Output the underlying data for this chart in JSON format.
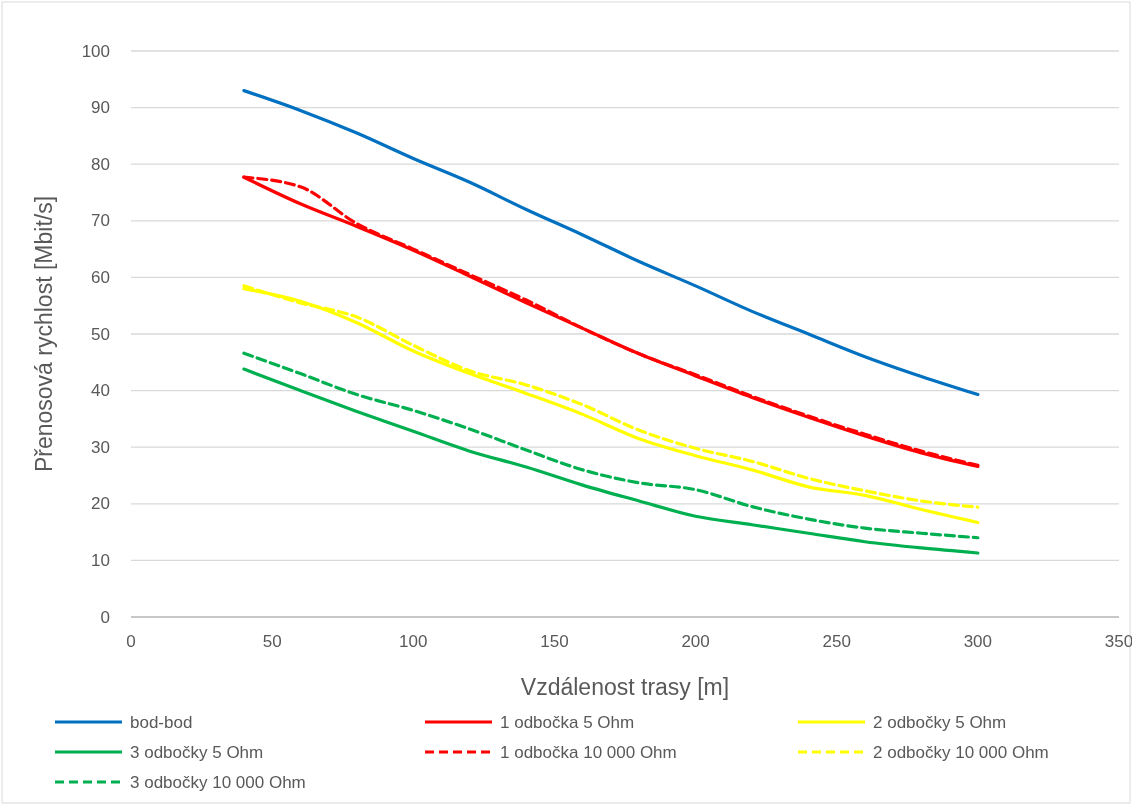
{
  "chart_data": {
    "type": "line",
    "xlabel": "Vzdálenost trasy [m]",
    "ylabel": "Přenosová rychlost [Mbit/s]",
    "x": [
      40,
      60,
      80,
      100,
      120,
      140,
      160,
      180,
      200,
      220,
      240,
      260,
      280,
      300
    ],
    "xlim": [
      0,
      350
    ],
    "xticks": [
      0,
      50,
      100,
      150,
      200,
      250,
      300,
      350
    ],
    "ylim": [
      0,
      100
    ],
    "yticks": [
      0,
      10,
      20,
      30,
      40,
      50,
      60,
      70,
      80,
      90,
      100
    ],
    "grid": "y",
    "legend": "bottom",
    "marker": "none",
    "series": [
      {
        "name": "bod-bod",
        "color": "#0070c0",
        "line_style": "solid",
        "values": [
          93,
          89.5,
          85.5,
          81,
          76.8,
          72,
          67.5,
          62.8,
          58.5,
          54,
          50,
          46,
          42.5,
          39.3
        ]
      },
      {
        "name": "1 odbočka 5 Ohm",
        "color": "#ff0000",
        "line_style": "solid",
        "values": [
          77.7,
          73,
          69,
          64.8,
          60.2,
          55.5,
          51,
          46.5,
          42.6,
          38.8,
          35.3,
          32,
          29,
          26.6
        ]
      },
      {
        "name": "2 odbočky 5 Ohm",
        "color": "#ffff00",
        "line_style": "solid",
        "values": [
          58,
          55.8,
          52,
          47,
          43,
          39.5,
          35.8,
          31.5,
          28.5,
          26,
          23,
          21.5,
          19,
          16.7
        ]
      },
      {
        "name": "3 odbočky 5 Ohm",
        "color": "#00b050",
        "line_style": "solid",
        "values": [
          43.8,
          40,
          36.3,
          32.8,
          29.3,
          26.5,
          23.3,
          20.5,
          17.8,
          16.3,
          14.8,
          13.3,
          12.2,
          11.3
        ]
      },
      {
        "name": "1 odbočka 10 000 Ohm",
        "color": "#ff0000",
        "line_style": "dashed",
        "values": [
          77.7,
          76,
          69.5,
          65,
          60.5,
          56,
          51,
          46.5,
          42.8,
          39,
          35.5,
          32.3,
          29.3,
          26.8
        ]
      },
      {
        "name": "2 odbočky 10 000 Ohm",
        "color": "#ffff00",
        "line_style": "dashed",
        "values": [
          58.5,
          55.5,
          53,
          48,
          43.5,
          41,
          37.5,
          33,
          29.8,
          27.5,
          24.5,
          22.3,
          20.5,
          19.4
        ]
      },
      {
        "name": "3 odbočky 10 000 Ohm",
        "color": "#00b050",
        "line_style": "dashed",
        "values": [
          46.6,
          43,
          39.3,
          36.5,
          33.2,
          29.5,
          26,
          23.7,
          22.5,
          19.5,
          17.3,
          15.7,
          14.8,
          14
        ]
      }
    ]
  }
}
